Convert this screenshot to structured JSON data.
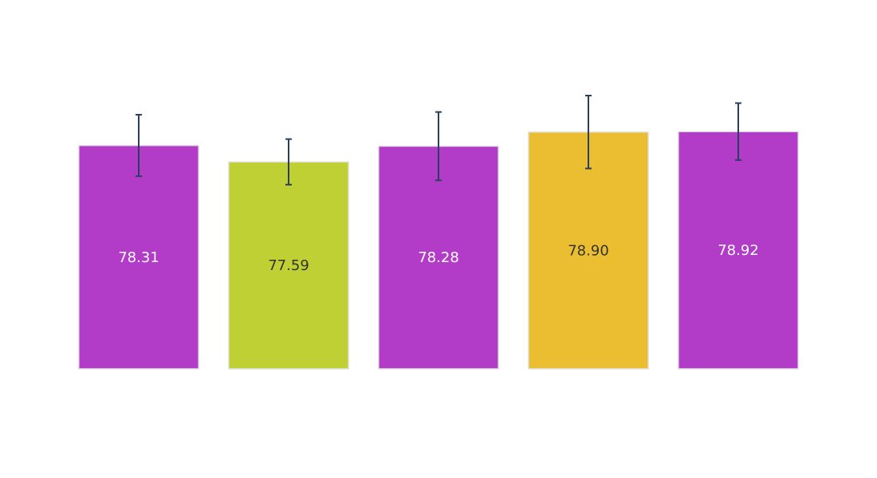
{
  "chart_data": {
    "type": "bar",
    "categories": [
      "",
      "",
      "",
      "",
      ""
    ],
    "values": [
      78.31,
      77.59,
      78.28,
      78.9,
      78.92
    ],
    "value_labels": [
      "78.31",
      "77.59",
      "78.28",
      "78.90",
      "78.92"
    ],
    "error": [
      1.35,
      1.0,
      1.5,
      1.6,
      1.25
    ],
    "ylim": [
      68.5,
      81.2
    ],
    "title": "",
    "xlabel": "",
    "ylabel": "",
    "grid": false,
    "colors": [
      "#b23cc8",
      "#bfd034",
      "#b23cc8",
      "#ebbe32",
      "#b23cc8"
    ],
    "label_colors": [
      "#ffffff",
      "#333333",
      "#ffffff",
      "#333333",
      "#ffffff"
    ],
    "bar_border_color": "#e3e3e3",
    "error_bar_color": "#2a3f5f"
  }
}
